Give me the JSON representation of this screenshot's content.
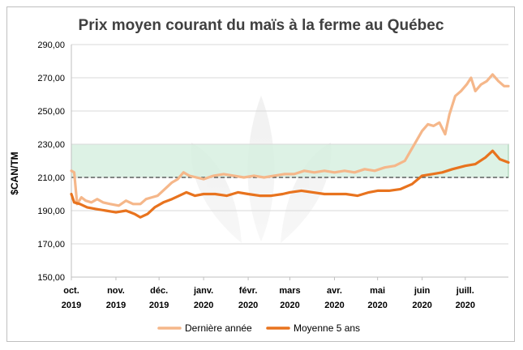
{
  "chart_data": {
    "type": "line",
    "title": "Prix moyen courant du maïs à la ferme au Québec",
    "ylabel": "$CAN/TM",
    "xlabel": "",
    "ylim": [
      150,
      290
    ],
    "yticks": [
      "150,00",
      "170,00",
      "190,00",
      "210,00",
      "230,00",
      "250,00",
      "270,00",
      "290,00"
    ],
    "ytick_values": [
      150,
      170,
      190,
      210,
      230,
      250,
      270,
      290
    ],
    "x_start": "2019-10-01",
    "x_end": "2020-07-31",
    "months": [
      {
        "month": "oct.",
        "year": "2019",
        "date": "2019-10-01"
      },
      {
        "month": "nov.",
        "year": "2019",
        "date": "2019-11-01"
      },
      {
        "month": "déc.",
        "year": "2019",
        "date": "2019-12-01"
      },
      {
        "month": "janv.",
        "year": "2020",
        "date": "2020-01-01"
      },
      {
        "month": "févr.",
        "year": "2020",
        "date": "2020-02-01"
      },
      {
        "month": "mars",
        "year": "2020",
        "date": "2020-03-01"
      },
      {
        "month": "avr.",
        "year": "2020",
        "date": "2020-04-01"
      },
      {
        "month": "mai",
        "year": "2020",
        "date": "2020-05-01"
      },
      {
        "month": "juin",
        "year": "2020",
        "date": "2020-06-01"
      },
      {
        "month": "juill.",
        "year": "2020",
        "date": "2020-07-01"
      }
    ],
    "band": {
      "from": 210,
      "to": 230,
      "color": "#d4efdf"
    },
    "reference_line": {
      "value": 210,
      "style": "dashed",
      "color": "#404040"
    },
    "grid": true,
    "legend_position": "bottom-center",
    "series": [
      {
        "name": "Dernière année",
        "color": "#f5b78a",
        "points": [
          [
            "2019-10-01",
            214
          ],
          [
            "2019-10-03",
            213
          ],
          [
            "2019-10-05",
            194
          ],
          [
            "2019-10-08",
            198
          ],
          [
            "2019-10-11",
            196
          ],
          [
            "2019-10-15",
            195
          ],
          [
            "2019-10-19",
            197
          ],
          [
            "2019-10-23",
            195
          ],
          [
            "2019-10-28",
            194
          ],
          [
            "2019-11-03",
            193
          ],
          [
            "2019-11-08",
            196
          ],
          [
            "2019-11-13",
            194
          ],
          [
            "2019-11-18",
            194
          ],
          [
            "2019-11-22",
            197
          ],
          [
            "2019-11-26",
            198
          ],
          [
            "2019-11-30",
            199
          ],
          [
            "2019-12-05",
            203
          ],
          [
            "2019-12-10",
            207
          ],
          [
            "2019-12-14",
            209
          ],
          [
            "2019-12-18",
            213
          ],
          [
            "2019-12-22",
            211
          ],
          [
            "2019-12-27",
            210
          ],
          [
            "2020-01-01",
            209
          ],
          [
            "2020-01-08",
            211
          ],
          [
            "2020-01-15",
            212
          ],
          [
            "2020-01-22",
            211
          ],
          [
            "2020-01-29",
            210
          ],
          [
            "2020-02-05",
            211
          ],
          [
            "2020-02-12",
            210
          ],
          [
            "2020-02-19",
            211
          ],
          [
            "2020-02-26",
            212
          ],
          [
            "2020-03-04",
            212
          ],
          [
            "2020-03-11",
            214
          ],
          [
            "2020-03-18",
            213
          ],
          [
            "2020-03-25",
            214
          ],
          [
            "2020-04-01",
            213
          ],
          [
            "2020-04-08",
            214
          ],
          [
            "2020-04-15",
            213
          ],
          [
            "2020-04-22",
            215
          ],
          [
            "2020-04-29",
            214
          ],
          [
            "2020-05-06",
            216
          ],
          [
            "2020-05-13",
            217
          ],
          [
            "2020-05-20",
            220
          ],
          [
            "2020-05-24",
            226
          ],
          [
            "2020-05-28",
            232
          ],
          [
            "2020-06-01",
            238
          ],
          [
            "2020-06-05",
            242
          ],
          [
            "2020-06-09",
            241
          ],
          [
            "2020-06-13",
            243
          ],
          [
            "2020-06-17",
            236
          ],
          [
            "2020-06-20",
            248
          ],
          [
            "2020-06-24",
            259
          ],
          [
            "2020-06-28",
            262
          ],
          [
            "2020-07-02",
            266
          ],
          [
            "2020-07-05",
            270
          ],
          [
            "2020-07-08",
            262
          ],
          [
            "2020-07-12",
            266
          ],
          [
            "2020-07-16",
            268
          ],
          [
            "2020-07-20",
            272
          ],
          [
            "2020-07-24",
            268
          ],
          [
            "2020-07-28",
            265
          ],
          [
            "2020-07-31",
            265
          ]
        ]
      },
      {
        "name": "Moyenne 5 ans",
        "color": "#e8731e",
        "points": [
          [
            "2019-10-01",
            200
          ],
          [
            "2019-10-03",
            195
          ],
          [
            "2019-10-07",
            194
          ],
          [
            "2019-10-12",
            192
          ],
          [
            "2019-10-18",
            191
          ],
          [
            "2019-10-25",
            190
          ],
          [
            "2019-11-01",
            189
          ],
          [
            "2019-11-08",
            190
          ],
          [
            "2019-11-14",
            188
          ],
          [
            "2019-11-18",
            186
          ],
          [
            "2019-11-23",
            188
          ],
          [
            "2019-11-28",
            192
          ],
          [
            "2019-12-04",
            195
          ],
          [
            "2019-12-10",
            197
          ],
          [
            "2019-12-15",
            199
          ],
          [
            "2019-12-20",
            201
          ],
          [
            "2019-12-26",
            199
          ],
          [
            "2020-01-01",
            200
          ],
          [
            "2020-01-09",
            200
          ],
          [
            "2020-01-17",
            199
          ],
          [
            "2020-01-25",
            201
          ],
          [
            "2020-02-01",
            200
          ],
          [
            "2020-02-09",
            199
          ],
          [
            "2020-02-17",
            199
          ],
          [
            "2020-02-25",
            200
          ],
          [
            "2020-03-01",
            201
          ],
          [
            "2020-03-09",
            202
          ],
          [
            "2020-03-17",
            201
          ],
          [
            "2020-03-25",
            200
          ],
          [
            "2020-04-01",
            200
          ],
          [
            "2020-04-09",
            200
          ],
          [
            "2020-04-17",
            199
          ],
          [
            "2020-04-25",
            201
          ],
          [
            "2020-05-01",
            202
          ],
          [
            "2020-05-09",
            202
          ],
          [
            "2020-05-17",
            203
          ],
          [
            "2020-05-25",
            206
          ],
          [
            "2020-06-01",
            211
          ],
          [
            "2020-06-08",
            212
          ],
          [
            "2020-06-15",
            213
          ],
          [
            "2020-06-22",
            215
          ],
          [
            "2020-07-01",
            217
          ],
          [
            "2020-07-08",
            218
          ],
          [
            "2020-07-15",
            222
          ],
          [
            "2020-07-20",
            226
          ],
          [
            "2020-07-25",
            221
          ],
          [
            "2020-07-31",
            219
          ]
        ]
      }
    ]
  }
}
